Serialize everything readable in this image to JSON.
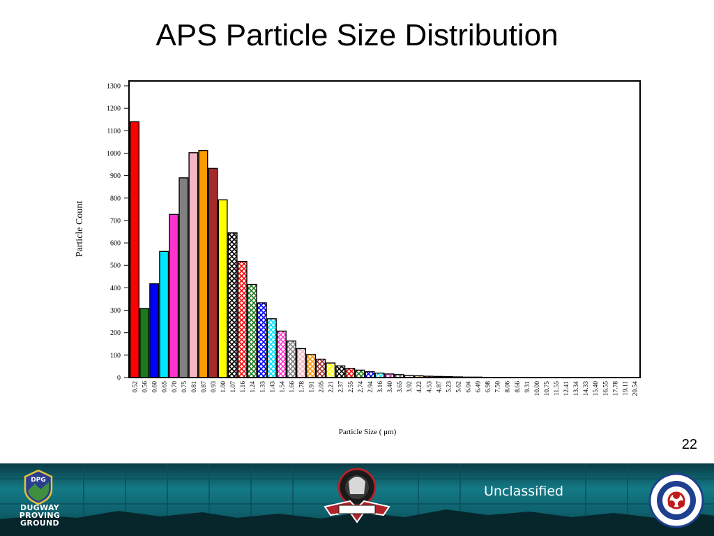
{
  "slide": {
    "title": "APS Particle Size Distribution",
    "page_number": "22",
    "classification": "Unclassified"
  },
  "footer": {
    "logo_left_text": "DPG",
    "logo_left_caption": [
      "DUGWAY",
      "PROVING",
      "GROUND"
    ]
  },
  "chart_data": {
    "type": "bar",
    "title": "",
    "xlabel": "Particle Size ( μm)",
    "ylabel": "Particle Count",
    "ylim": [
      0,
      1300
    ],
    "yticks": [
      0,
      100,
      200,
      300,
      400,
      500,
      600,
      700,
      800,
      900,
      1000,
      1100,
      1200,
      1300
    ],
    "grid": false,
    "categories": [
      "0.52",
      "0.56",
      "0.60",
      "0.65",
      "0.70",
      "0.75",
      "0.81",
      "0.87",
      "0.93",
      "1.00",
      "1.07",
      "1.16",
      "1.24",
      "1.33",
      "1.43",
      "1.54",
      "1.66",
      "1.78",
      "1.91",
      "2.05",
      "2.21",
      "2.37",
      "2.55",
      "2.74",
      "2.94",
      "3.16",
      "3.40",
      "3.65",
      "3.92",
      "4.22",
      "4.53",
      "4.87",
      "5.23",
      "5.62",
      "6.04",
      "6.49",
      "6.98",
      "7.50",
      "8.06",
      "8.66",
      "9.31",
      "10.00",
      "10.75",
      "11.55",
      "12.41",
      "13.34",
      "14.33",
      "15.40",
      "16.55",
      "17.78",
      "19.11",
      "20.54"
    ],
    "values": [
      1140,
      308,
      418,
      562,
      727,
      890,
      1002,
      1012,
      932,
      792,
      645,
      517,
      415,
      333,
      262,
      207,
      163,
      129,
      103,
      82,
      65,
      52,
      41,
      33,
      26,
      20,
      16,
      13,
      10,
      8,
      6,
      5,
      4,
      3,
      2,
      2,
      1,
      1,
      1,
      1,
      0,
      0,
      0,
      0,
      0,
      0,
      0,
      0,
      0,
      0,
      0,
      0
    ],
    "bar_colors": [
      "#ff0000",
      "#1a7a1a",
      "#0000ff",
      "#00e5ff",
      "#ff33cc",
      "#808080",
      "#f4b6c2",
      "#ff9900",
      "#a52a2a",
      "#ffff00",
      "#000000",
      "#ff0000",
      "#1a7a1a",
      "#0000ff",
      "#00e5ff",
      "#ff33cc",
      "#808080",
      "#f4b6c2",
      "#ff9900",
      "#a52a2a",
      "#ffff00",
      "#000000",
      "#ff0000",
      "#1a7a1a",
      "#0000ff",
      "#00e5ff",
      "#ff33cc",
      "#808080",
      "#f4b6c2",
      "#ff9900",
      "#a52a2a",
      "#ffff00",
      "#000000",
      "#ff0000",
      "#1a7a1a",
      "#0000ff",
      "#00e5ff",
      "#ff33cc",
      "#808080",
      "#f4b6c2",
      "#ff9900",
      "#a52a2a",
      "#ffff00",
      "#000000",
      "#ff0000",
      "#1a7a1a",
      "#0000ff",
      "#00e5ff",
      "#ff33cc",
      "#808080",
      "#f4b6c2",
      "#ff9900"
    ],
    "first_hatched_index": 10
  }
}
